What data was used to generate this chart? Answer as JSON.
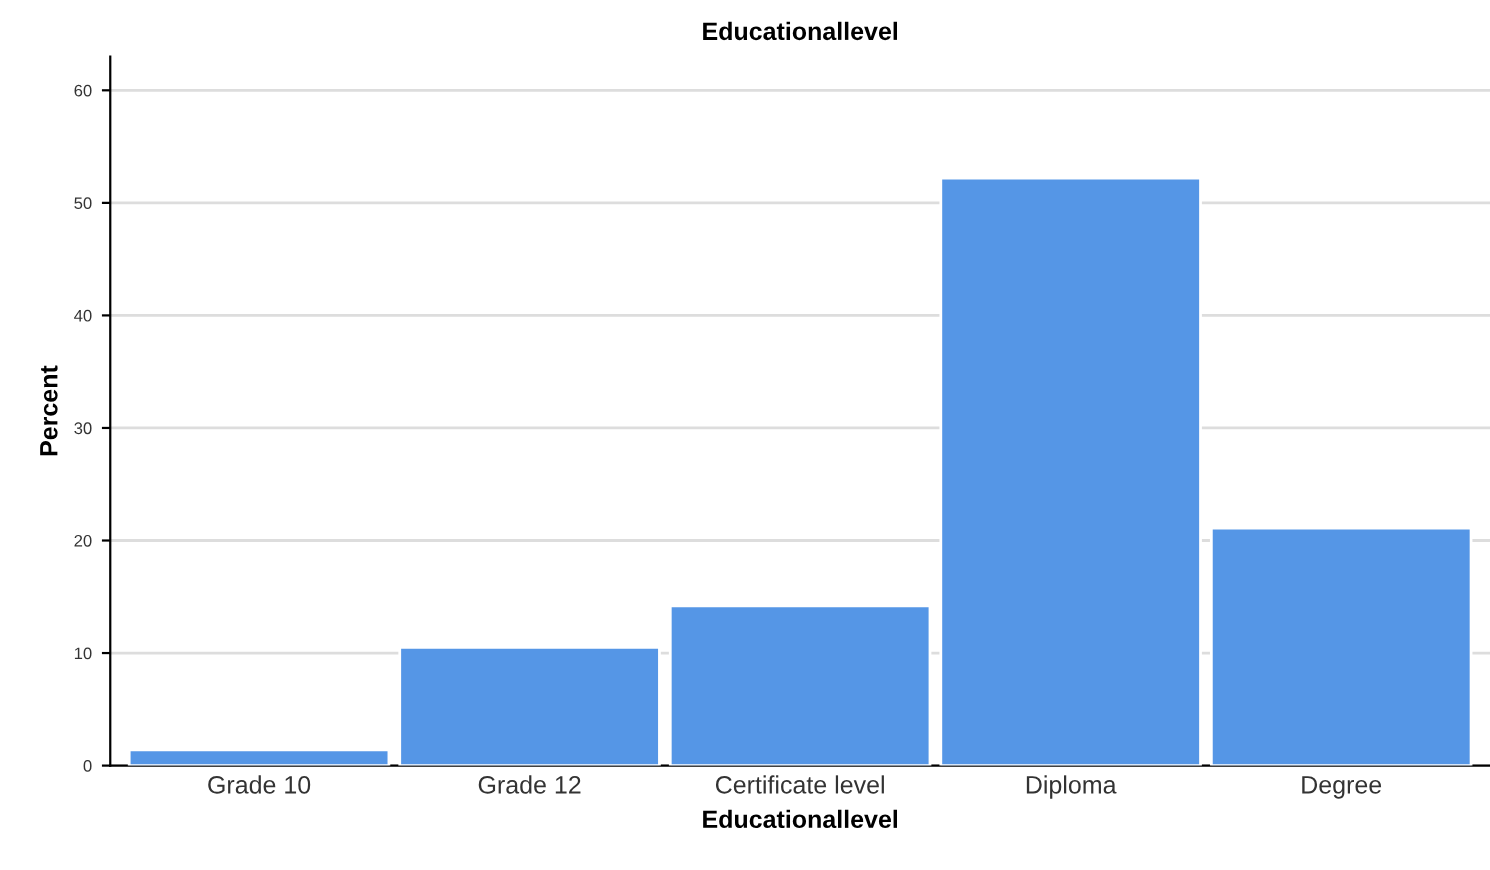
{
  "chart_data": {
    "type": "bar",
    "title": "Educationallevel",
    "xlabel": "Educationallevel",
    "ylabel": "Percent",
    "categories": [
      "Grade 10",
      "Grade 12",
      "Certificate level",
      "Diploma",
      "Degree"
    ],
    "values": [
      1.4,
      10.5,
      14.2,
      52.2,
      21.1
    ],
    "color": "#5596e6",
    "ylim": [
      0,
      63
    ],
    "yticks": [
      0,
      10,
      20,
      30,
      40,
      50,
      60
    ],
    "grid": "y",
    "legend": false
  }
}
